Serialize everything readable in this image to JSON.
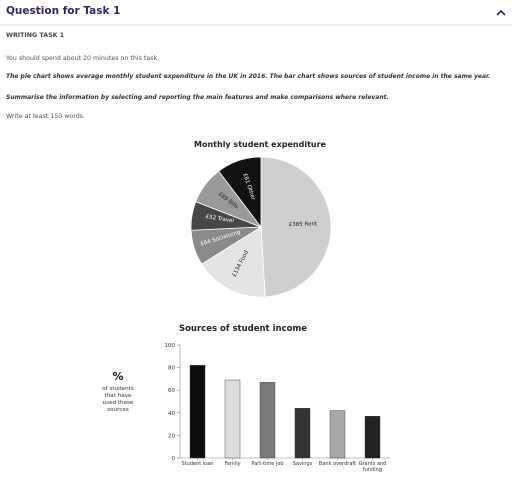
{
  "header": {
    "title": "Question for Task 1"
  },
  "task": {
    "label": "WRITING TASK 1",
    "time": "You should spend about 20 minutes on this task.",
    "prompt": "The pie chart shows average monthly student expenditure in the UK in 2016. The bar chart shows sources of student income in the same year.",
    "instruction": "Summarise the information by selecting and reporting the main features and make comparisons where relevant.",
    "words": "Write at least 150 words."
  },
  "chart_data": [
    {
      "type": "pie",
      "title": "Monthly student expenditure",
      "categories": [
        "Rent",
        "Food",
        "Socialising",
        "Travel",
        "Bills",
        "Other"
      ],
      "values": [
        385,
        134,
        64,
        52,
        69,
        81
      ],
      "value_labels": [
        "£385",
        "£134",
        "£64",
        "£52",
        "£69",
        "£81"
      ],
      "colors": [
        "#cfcfcf",
        "#e4e4e4",
        "#8a8a8a",
        "#474747",
        "#9a9a9a",
        "#111111"
      ]
    },
    {
      "type": "bar",
      "title": "Sources of student income",
      "y_label": "%",
      "y_sublabel": "of students that have used these sources",
      "categories": [
        "Student loan",
        "Family",
        "Part-time job",
        "Savings",
        "Bank overdraft",
        "Grants and funding"
      ],
      "values": [
        82,
        69,
        67,
        44,
        42,
        37
      ],
      "colors": [
        "#0d0d0d",
        "#dcdcdc",
        "#7a7a7a",
        "#333333",
        "#a8a8a8",
        "#222222"
      ],
      "ylim": [
        0,
        100
      ],
      "yticks": [
        0,
        20,
        40,
        60,
        80,
        100
      ],
      "grid": false
    }
  ]
}
